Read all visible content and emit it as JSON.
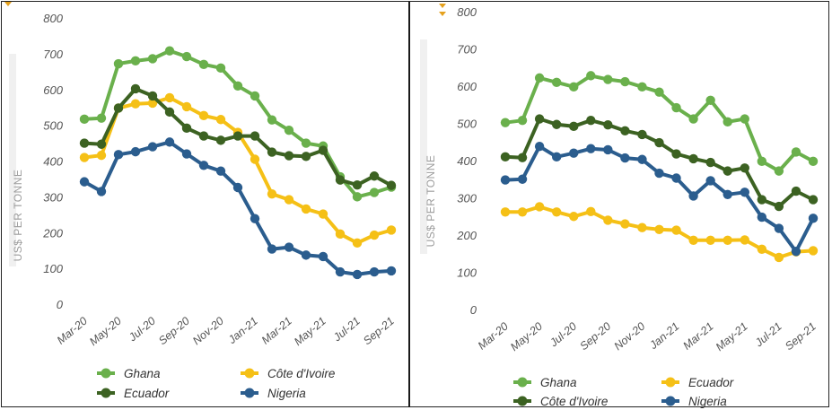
{
  "chart_data": [
    {
      "type": "line",
      "ylabel": "US$ PER TONNE",
      "ylim": [
        0,
        800
      ],
      "yticks": [
        "0",
        "100",
        "200",
        "300",
        "400",
        "500",
        "600",
        "700",
        "800"
      ],
      "x_tick_labels": [
        "Mar-20",
        "May-20",
        "Jul-20",
        "Sep-20",
        "Nov-20",
        "Jan-21",
        "Mar-21",
        "May-21",
        "Jul-21",
        "Sep-21"
      ],
      "months": [
        "Mar-20",
        "Apr-20",
        "May-20",
        "Jun-20",
        "Jul-20",
        "Aug-20",
        "Sep-20",
        "Oct-20",
        "Nov-20",
        "Dec-20",
        "Jan-21",
        "Feb-21",
        "Mar-21",
        "Apr-21",
        "May-21",
        "Jun-21",
        "Jul-21",
        "Aug-21",
        "Sep-21"
      ],
      "grid": false,
      "legend_position": "bottom",
      "series": [
        {
          "name": "Ghana",
          "color": "#6ab04c",
          "values": [
            517,
            520,
            672,
            680,
            686,
            708,
            692,
            670,
            660,
            610,
            582,
            515,
            486,
            450,
            442,
            356,
            300,
            312,
            327
          ]
        },
        {
          "name": "Côte d'Ivoire",
          "color": "#f5c016",
          "values": [
            410,
            416,
            548,
            560,
            562,
            577,
            552,
            527,
            516,
            480,
            405,
            308,
            292,
            266,
            252,
            196,
            171,
            193,
            207
          ]
        },
        {
          "name": "Ecuador",
          "color": "#3c6222",
          "values": [
            450,
            447,
            548,
            602,
            582,
            537,
            492,
            470,
            458,
            470,
            470,
            425,
            415,
            413,
            430,
            347,
            333,
            358,
            332
          ]
        },
        {
          "name": "Nigeria",
          "color": "#2b5d8e",
          "values": [
            342,
            315,
            418,
            426,
            440,
            453,
            420,
            388,
            372,
            326,
            239,
            154,
            159,
            137,
            133,
            90,
            83,
            90,
            93
          ]
        }
      ]
    },
    {
      "type": "line",
      "ylabel": "US$ PER TONNE",
      "ylim": [
        0,
        800
      ],
      "yticks": [
        "0",
        "100",
        "200",
        "300",
        "400",
        "500",
        "600",
        "700",
        "800"
      ],
      "x_tick_labels": [
        "Mar-20",
        "May-20",
        "Jul-20",
        "Sep-20",
        "Nov-20",
        "Jan-21",
        "Mar-21",
        "May-21",
        "Jul-21",
        "Sep-21"
      ],
      "months": [
        "Mar-20",
        "Apr-20",
        "May-20",
        "Jun-20",
        "Jul-20",
        "Aug-20",
        "Sep-20",
        "Oct-20",
        "Nov-20",
        "Dec-20",
        "Jan-21",
        "Feb-21",
        "Mar-21",
        "Apr-21",
        "May-21",
        "Jun-21",
        "Jul-21",
        "Aug-21",
        "Sep-21"
      ],
      "grid": false,
      "legend_position": "bottom",
      "series": [
        {
          "name": "Ghana",
          "color": "#6ab04c",
          "values": [
            502,
            508,
            622,
            610,
            598,
            628,
            618,
            612,
            598,
            584,
            542,
            512,
            562,
            504,
            512,
            398,
            372,
            423,
            398
          ]
        },
        {
          "name": "Ecuador",
          "color": "#f5c016",
          "values": [
            262,
            262,
            276,
            262,
            250,
            263,
            240,
            230,
            220,
            215,
            213,
            186,
            186,
            186,
            187,
            162,
            140,
            155,
            158
          ]
        },
        {
          "name": "Côte d'Ivoire",
          "color": "#3c6222",
          "values": [
            410,
            408,
            512,
            497,
            492,
            508,
            496,
            480,
            470,
            448,
            418,
            405,
            395,
            372,
            380,
            295,
            277,
            318,
            295
          ]
        },
        {
          "name": "Nigeria",
          "color": "#2b5d8e",
          "values": [
            348,
            350,
            438,
            410,
            420,
            432,
            429,
            407,
            403,
            366,
            353,
            305,
            346,
            309,
            315,
            248,
            218,
            156,
            245
          ]
        }
      ]
    }
  ]
}
